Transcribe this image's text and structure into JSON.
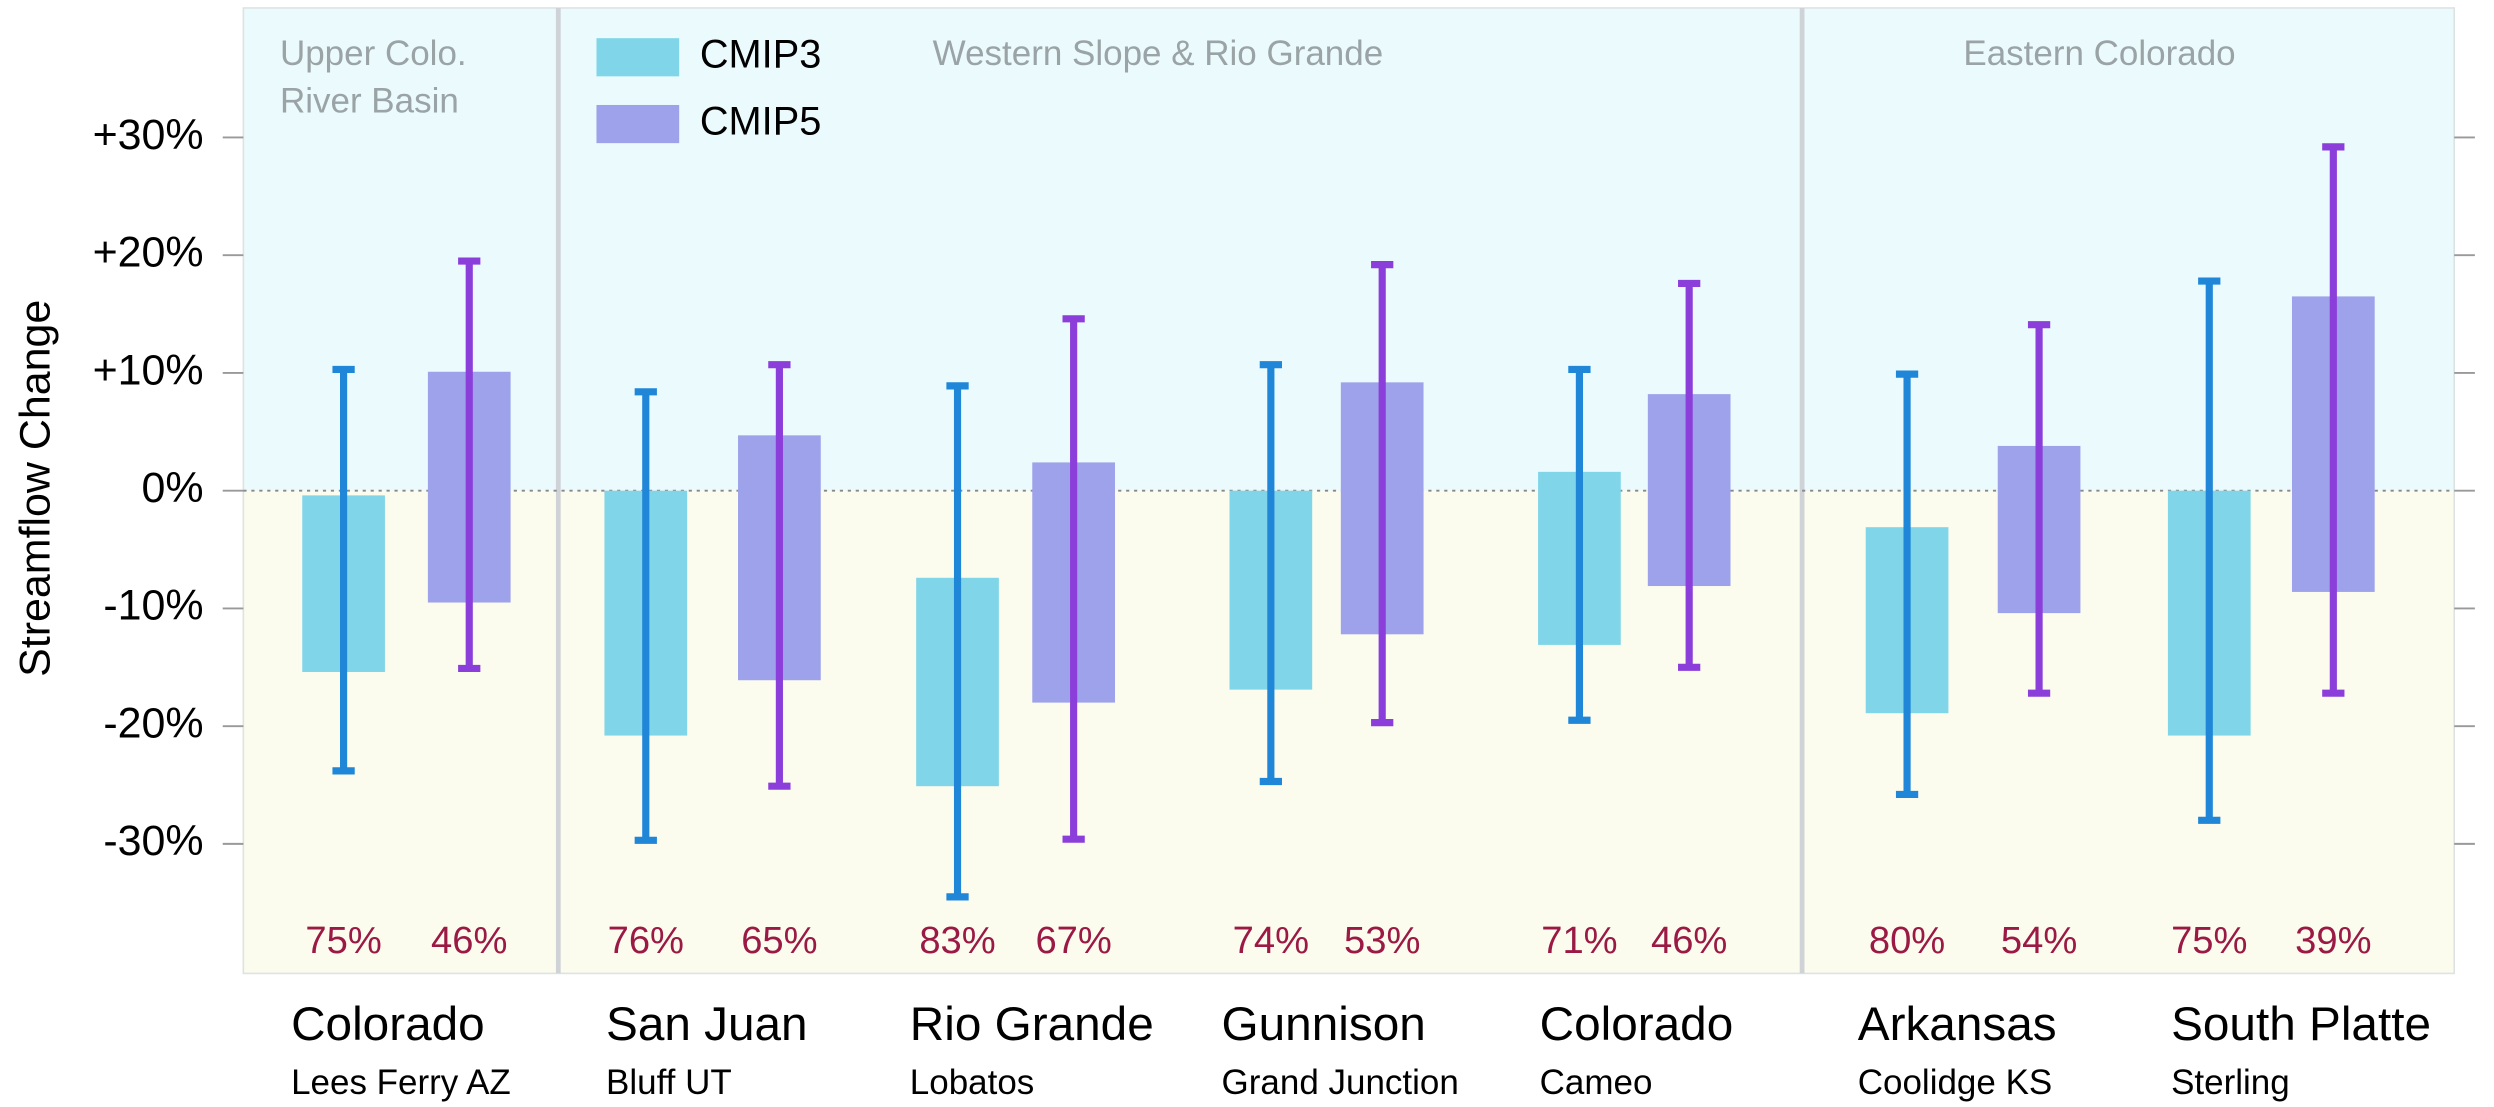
{
  "chart_data": {
    "type": "floating-bar",
    "y_label": "Streamflow Change",
    "ylim": [
      -41,
      41
    ],
    "yticks": [
      {
        "value": 30,
        "label": "+30%"
      },
      {
        "value": 20,
        "label": "+20%"
      },
      {
        "value": 10,
        "label": "+10%"
      },
      {
        "value": 0,
        "label": "0%"
      },
      {
        "value": -10,
        "label": "-10%"
      },
      {
        "value": -20,
        "label": "-20%"
      },
      {
        "value": -30,
        "label": "-30%"
      }
    ],
    "legend": "upper-left",
    "regions": [
      {
        "lines": [
          "Upper Colo.",
          "River Basin"
        ]
      },
      {
        "lines": [
          "Western Slope & Rio Grande"
        ]
      },
      {
        "lines": [
          "Eastern Colorado"
        ]
      }
    ],
    "categories": [
      "Colorado",
      "San Juan",
      "Rio Grande",
      "Gunnison",
      "Colorado",
      "Arkansas",
      "South Platte"
    ],
    "sublabels": [
      "Lees Ferry AZ",
      "Bluff UT",
      "Lobatos",
      "Grand Junction",
      "Cameo",
      "Coolidge KS",
      "Sterling"
    ],
    "series": [
      {
        "name": "CMIP3",
        "color": "#80d6e8",
        "whisker_color": "#1f86d8",
        "high": [
          -0.4,
          0,
          -7.4,
          0,
          1.6,
          -3.1,
          0
        ],
        "low": [
          -15.4,
          -20.8,
          -25.1,
          -16.9,
          -13.1,
          -18.9,
          -20.8
        ],
        "whisker_high": [
          10.3,
          8.4,
          8.9,
          10.7,
          10.3,
          9.9,
          17.8
        ],
        "whisker_low": [
          -23.8,
          -29.7,
          -34.5,
          -24.7,
          -19.5,
          -25.8,
          -28
        ],
        "agreement": [
          75,
          76,
          83,
          74,
          71,
          80,
          75
        ],
        "agreement_labels": [
          "75%",
          "76%",
          "83%",
          "74%",
          "71%",
          "80%",
          "75%"
        ]
      },
      {
        "name": "CMIP5",
        "color": "#9da2ea",
        "whisker_color": "#8b3ed9",
        "high": [
          10.1,
          4.7,
          2.4,
          9.2,
          8.2,
          3.8,
          16.5
        ],
        "low": [
          -9.5,
          -16.1,
          -18,
          -12.2,
          -8.1,
          -10.4,
          -8.6
        ],
        "whisker_high": [
          19.5,
          10.7,
          14.6,
          19.2,
          17.6,
          14.1,
          29.2
        ],
        "whisker_low": [
          -15.1,
          -25.1,
          -29.6,
          -19.7,
          -15,
          -17.2,
          -17.2
        ],
        "agreement": [
          46,
          65,
          67,
          53,
          46,
          54,
          39
        ],
        "agreement_labels": [
          "46%",
          "65%",
          "67%",
          "53%",
          "46%",
          "54%",
          "39%"
        ]
      }
    ]
  }
}
